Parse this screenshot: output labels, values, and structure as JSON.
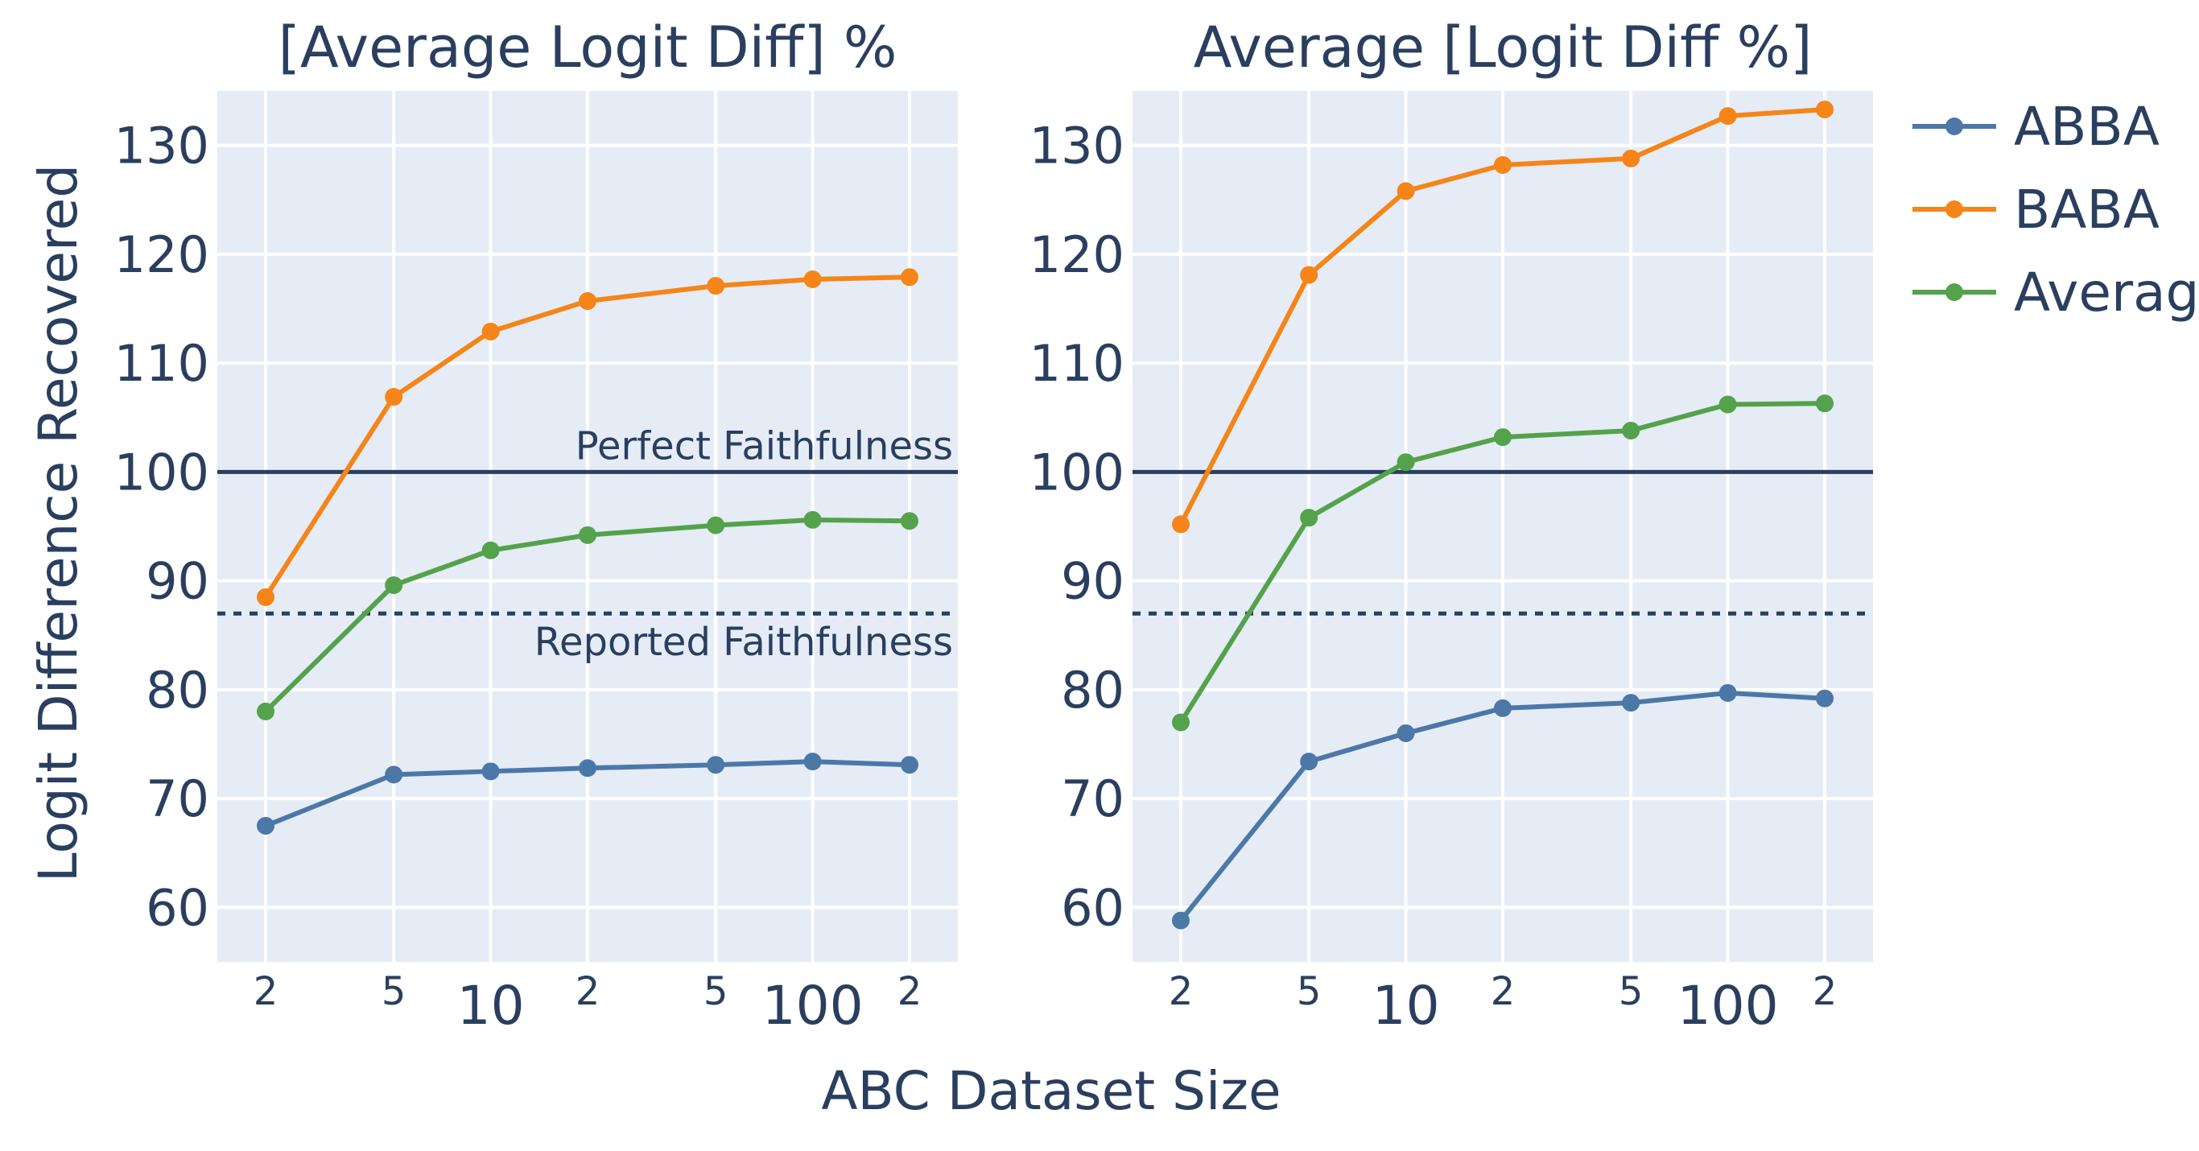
{
  "chart_data": [
    {
      "type": "line",
      "title": "[Average Logit Diff] %",
      "xlabel": "ABC Dataset Size",
      "ylabel": "Logit Difference Recovered",
      "xscale": "log",
      "x": [
        20,
        50,
        100,
        200,
        500,
        1000,
        2000
      ],
      "xticks": [
        {
          "value": 20,
          "label": "2",
          "major": false
        },
        {
          "value": 50,
          "label": "5",
          "major": false
        },
        {
          "value": 100,
          "label": "10",
          "major": true
        },
        {
          "value": 200,
          "label": "2",
          "major": false
        },
        {
          "value": 500,
          "label": "5",
          "major": false
        },
        {
          "value": 1000,
          "label": "100",
          "major": true
        },
        {
          "value": 2000,
          "label": "2",
          "major": false
        }
      ],
      "ylim": [
        55,
        135
      ],
      "yticks": [
        60,
        70,
        80,
        90,
        100,
        110,
        120,
        130
      ],
      "series": [
        {
          "name": "ABBA",
          "color": "#4c78a8",
          "values": [
            67.5,
            72.2,
            72.5,
            72.8,
            73.1,
            73.4,
            73.1
          ]
        },
        {
          "name": "BABA",
          "color": "#f58518",
          "values": [
            88.5,
            106.9,
            112.9,
            115.7,
            117.1,
            117.7,
            117.9
          ]
        },
        {
          "name": "Average",
          "color": "#54a24b",
          "values": [
            78.0,
            89.6,
            92.8,
            94.2,
            95.1,
            95.6,
            95.5
          ]
        }
      ],
      "hlines": [
        {
          "y": 100,
          "style": "solid",
          "label": "Perfect Faithfulness",
          "label_position": "above-right"
        },
        {
          "y": 87,
          "style": "dotted",
          "label": "Reported Faithfulness",
          "label_position": "below-right"
        }
      ]
    },
    {
      "type": "line",
      "title": "Average [Logit Diff %]",
      "xlabel": "ABC Dataset Size",
      "ylabel": "Logit Difference Recovered",
      "xscale": "log",
      "x": [
        20,
        50,
        100,
        200,
        500,
        1000,
        2000
      ],
      "xticks": [
        {
          "value": 20,
          "label": "2",
          "major": false
        },
        {
          "value": 50,
          "label": "5",
          "major": false
        },
        {
          "value": 100,
          "label": "10",
          "major": true
        },
        {
          "value": 200,
          "label": "2",
          "major": false
        },
        {
          "value": 500,
          "label": "5",
          "major": false
        },
        {
          "value": 1000,
          "label": "100",
          "major": true
        },
        {
          "value": 2000,
          "label": "2",
          "major": false
        }
      ],
      "ylim": [
        55,
        135
      ],
      "yticks": [
        60,
        70,
        80,
        90,
        100,
        110,
        120,
        130
      ],
      "series": [
        {
          "name": "ABBA",
          "color": "#4c78a8",
          "values": [
            58.8,
            73.4,
            76.0,
            78.3,
            78.8,
            79.7,
            79.2
          ]
        },
        {
          "name": "BABA",
          "color": "#f58518",
          "values": [
            95.2,
            118.1,
            125.8,
            128.2,
            128.8,
            132.7,
            133.3
          ]
        },
        {
          "name": "Average",
          "color": "#54a24b",
          "values": [
            77.0,
            95.8,
            100.9,
            103.2,
            103.8,
            106.2,
            106.3
          ]
        }
      ],
      "hlines": [
        {
          "y": 100,
          "style": "solid",
          "label": "",
          "label_position": ""
        },
        {
          "y": 87,
          "style": "dotted",
          "label": "",
          "label_position": ""
        }
      ]
    }
  ],
  "legend": {
    "position": "top-right",
    "entries": [
      {
        "name": "ABBA",
        "color": "#4c78a8"
      },
      {
        "name": "BABA",
        "color": "#f58518"
      },
      {
        "name": "Average",
        "color": "#54a24b"
      }
    ]
  },
  "styles": {
    "plot_bg": "#e5ecf6",
    "grid": "#ffffff",
    "text": "#2a3f5f",
    "hline": "#2a3f5f"
  }
}
